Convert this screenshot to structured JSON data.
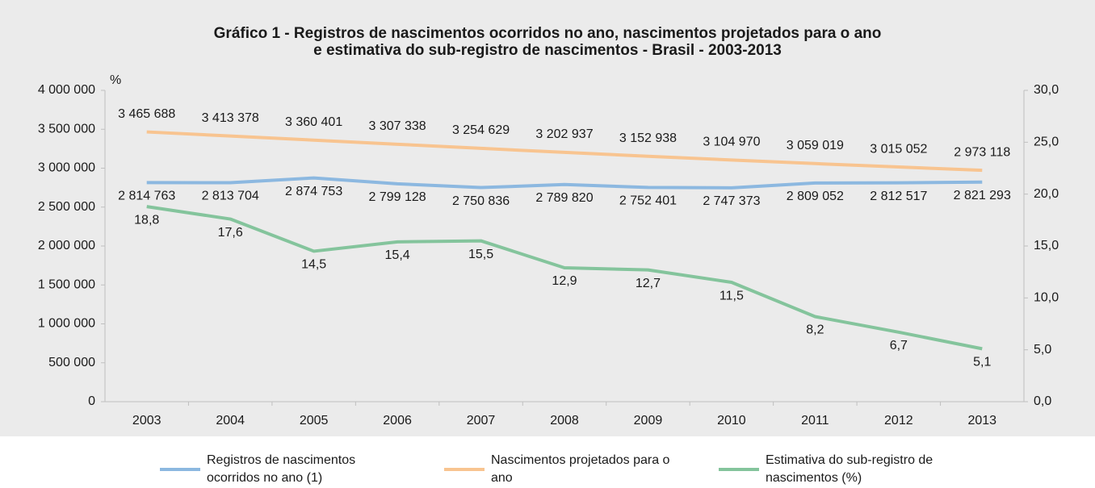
{
  "chart_data": {
    "type": "line",
    "title": [
      "Gráfico 1 - Registros de nascimentos ocorridos no ano, nascimentos projetados para o ano",
      "e estimativa do sub-registro de nascimentos - Brasil - 2003-2013"
    ],
    "y2_label": "%",
    "categories": [
      "2003",
      "2004",
      "2005",
      "2006",
      "2007",
      "2008",
      "2009",
      "2010",
      "2011",
      "2012",
      "2013"
    ],
    "ylim": [
      0,
      4000000
    ],
    "yticks": [
      0,
      {
        "value": 500000,
        "label": "500 000"
      },
      {
        "value": 1000000,
        "label": "1 000 000"
      },
      {
        "value": 1500000,
        "label": "1 500 000"
      },
      {
        "value": 2000000,
        "label": "2 000 000"
      },
      {
        "value": 2500000,
        "label": "2 500 000"
      },
      {
        "value": 3000000,
        "label": "3 000 000"
      },
      {
        "value": 3500000,
        "label": "3 500 000"
      },
      {
        "value": 4000000,
        "label": "4 000 000"
      }
    ],
    "y2lim": [
      0,
      30
    ],
    "y2ticks": [
      {
        "value": 0,
        "label": "0,0"
      },
      {
        "value": 5,
        "label": "5,0"
      },
      {
        "value": 10,
        "label": "10,0"
      },
      {
        "value": 15,
        "label": "15,0"
      },
      {
        "value": 20,
        "label": "20,0"
      },
      {
        "value": 25,
        "label": "25,0"
      },
      {
        "value": 30,
        "label": "30,0"
      }
    ],
    "grid": false,
    "legend": "bottom",
    "series": [
      {
        "name": "Registros de nascimentos ocorridos no ano (1)",
        "color": "#8cb8e0",
        "values": [
          2814763,
          2813704,
          2874753,
          2799128,
          2750836,
          2789820,
          2752401,
          2747373,
          2809052,
          2812517,
          2821293
        ],
        "value_labels": [
          "2 814 763",
          "2 813 704",
          "2 874 753",
          "2 799 128",
          "2 750 836",
          "2 789 820",
          "2 752 401",
          "2 747 373",
          "2 809 052",
          "2 812 517",
          "2 821 293"
        ],
        "label_position": "below"
      },
      {
        "name": "Nascimentos projetados para o ano",
        "color": "#f8c490",
        "values": [
          3465688,
          3413378,
          3360401,
          3307338,
          3254629,
          3202937,
          3152938,
          3104970,
          3059019,
          3015052,
          2973118
        ],
        "value_labels": [
          "3 465 688",
          "3 413 378",
          "3 360 401",
          "3 307 338",
          "3 254 629",
          "3 202 937",
          "3 152 938",
          "3 104 970",
          "3 059 019",
          "3 015 052",
          "2 973 118"
        ],
        "label_position": "above"
      },
      {
        "name": "Estimativa do sub-registro de nascimentos (%)",
        "color": "#84c49c",
        "axis": "y2",
        "values": [
          18.8,
          17.6,
          14.5,
          15.4,
          15.5,
          12.9,
          12.7,
          11.5,
          8.2,
          6.7,
          5.1
        ],
        "value_labels": [
          "18,8",
          "17,6",
          "14,5",
          "15,4",
          "15,5",
          "12,9",
          "12,7",
          "11,5",
          "8,2",
          "6,7",
          "5,1"
        ],
        "label_position": "below"
      }
    ]
  }
}
